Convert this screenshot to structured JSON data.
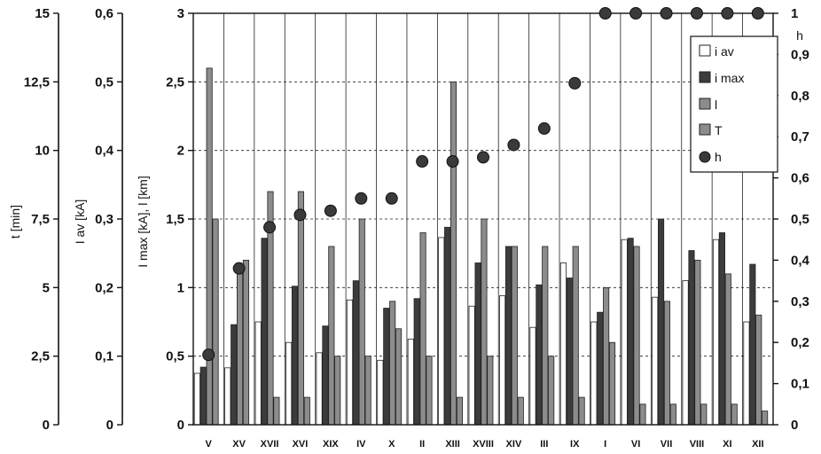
{
  "chart_data": {
    "type": "bar",
    "categories": [
      "V",
      "XV",
      "XVII",
      "XVI",
      "XIX",
      "IV",
      "X",
      "II",
      "XIII",
      "XVIII",
      "XIV",
      "III",
      "IX",
      "I",
      "VI",
      "VII",
      "VIII",
      "XI",
      "XII"
    ],
    "series": [
      {
        "name": "i av",
        "axis": "I av [kA]",
        "color": "#ffffff",
        "values": [
          0.075,
          0.083,
          0.15,
          0.12,
          0.105,
          0.182,
          0.094,
          0.125,
          0.273,
          0.173,
          0.188,
          0.142,
          0.236,
          0.15,
          0.27,
          0.186,
          0.21,
          0.27,
          0.15
        ]
      },
      {
        "name": "i max",
        "axis": "I max [kA], l [km]",
        "color": "#3c3c3c",
        "values": [
          0.42,
          0.73,
          1.36,
          1.01,
          0.72,
          1.05,
          0.85,
          0.92,
          1.44,
          1.18,
          1.3,
          1.02,
          1.07,
          0.82,
          1.36,
          1.5,
          1.27,
          1.4,
          1.17
        ]
      },
      {
        "name": "l",
        "axis": "I max [kA], l [km]",
        "color": "#8c8c8c",
        "values": [
          2.6,
          1.1,
          1.7,
          1.7,
          1.3,
          1.5,
          0.9,
          1.4,
          2.5,
          1.5,
          1.3,
          1.3,
          1.3,
          1.0,
          1.3,
          0.9,
          1.2,
          1.1,
          0.8
        ]
      },
      {
        "name": "T",
        "axis": "t [min]",
        "color": "#8c8c8c",
        "values": [
          7.5,
          6.0,
          1.0,
          1.0,
          2.5,
          2.5,
          3.5,
          2.5,
          1.0,
          2.5,
          1.0,
          2.5,
          1.0,
          3.0,
          0.75,
          0.75,
          0.75,
          0.75,
          0.5
        ]
      },
      {
        "name": "h",
        "axis": "h",
        "color": "#3a3a3a",
        "marker": "circle",
        "values": [
          0.17,
          0.38,
          0.48,
          0.51,
          0.52,
          0.55,
          0.55,
          0.64,
          0.64,
          0.65,
          0.68,
          0.72,
          0.83,
          1,
          1,
          1,
          1,
          1,
          1
        ]
      }
    ],
    "axes": [
      {
        "label": "t [min]",
        "ylim": [
          0,
          15
        ],
        "ticks": [
          "0",
          "2,5",
          "5",
          "7,5",
          "10",
          "12,5",
          "15"
        ]
      },
      {
        "label": "I av [kA]",
        "ylim": [
          0,
          0.6
        ],
        "ticks": [
          "0",
          "0,1",
          "0,2",
          "0,3",
          "0,4",
          "0,5",
          "0,6"
        ]
      },
      {
        "label": "I max [kA], l [km]",
        "ylim": [
          0,
          3
        ],
        "ticks": [
          "0",
          "0,5",
          "1",
          "1,5",
          "2",
          "2,5",
          "3"
        ]
      },
      {
        "label": "h",
        "ylim": [
          0,
          1
        ],
        "ticks": [
          "0",
          "0,1",
          "0,2",
          "0,3",
          "0,4",
          "0,5",
          "0,6",
          "0,7",
          "0,8",
          "0,9",
          "1"
        ]
      }
    ],
    "grid": "dashed horizontal at main axis ticks",
    "legend_position": "top-right"
  }
}
